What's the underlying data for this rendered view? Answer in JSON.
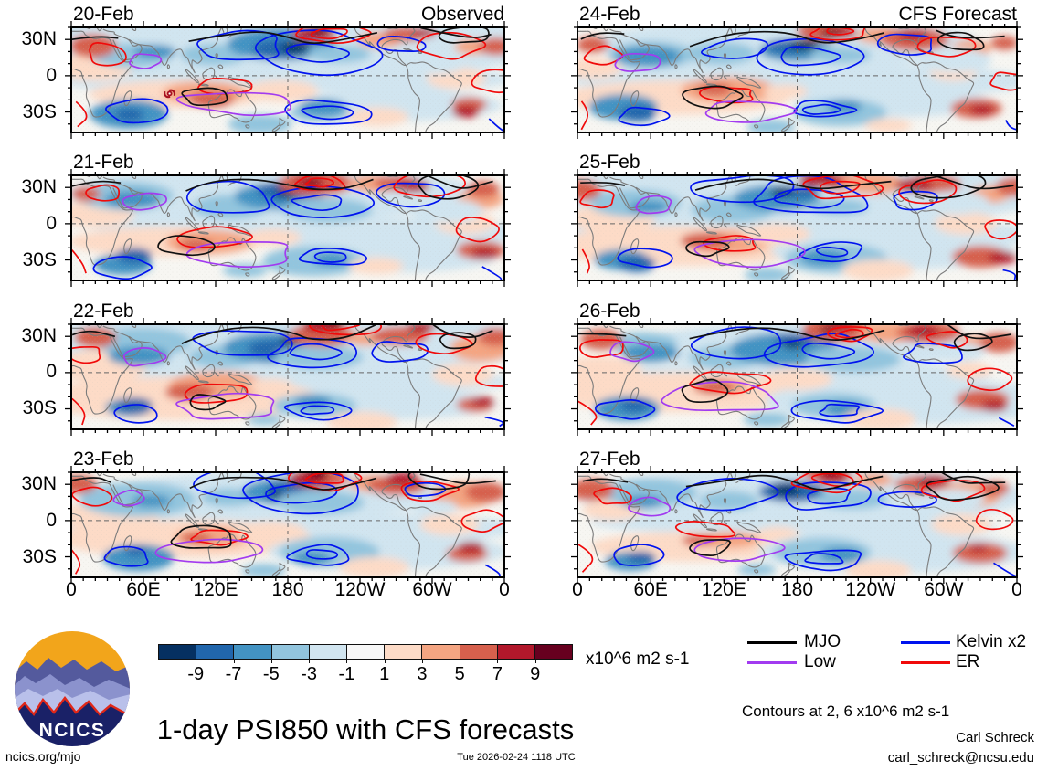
{
  "figure": {
    "title": "1-day PSI850 with CFS forecasts",
    "contours_note": "Contours at 2, 6 x10^6 m2 s-1",
    "credit_name": "Carl Schreck",
    "credit_email": "carl_schreck@ncsu.edu",
    "footer_left": "ncics.org/mjo",
    "footer_center": "Tue 2026-02-24 1118 UTC",
    "logo_text": "NCICS"
  },
  "columns": [
    {
      "header": "Observed"
    },
    {
      "header": "CFS Forecast"
    }
  ],
  "panels": [
    {
      "label": "20-Feb",
      "col": 0,
      "row": 0,
      "header": "Observed"
    },
    {
      "label": "21-Feb",
      "col": 0,
      "row": 1
    },
    {
      "label": "22-Feb",
      "col": 0,
      "row": 2
    },
    {
      "label": "23-Feb",
      "col": 0,
      "row": 3
    },
    {
      "label": "24-Feb",
      "col": 1,
      "row": 0,
      "header": "CFS Forecast"
    },
    {
      "label": "25-Feb",
      "col": 1,
      "row": 1
    },
    {
      "label": "26-Feb",
      "col": 1,
      "row": 2
    },
    {
      "label": "27-Feb",
      "col": 1,
      "row": 3
    }
  ],
  "axes": {
    "y_tick_labels": [
      "30N",
      "0",
      "30S"
    ],
    "x_tick_labels": [
      "0",
      "60E",
      "120E",
      "180",
      "120W",
      "60W",
      "0"
    ]
  },
  "colorbar": {
    "tick_labels": [
      "-9",
      "-7",
      "-5",
      "-3",
      "-1",
      "1",
      "3",
      "5",
      "7",
      "9"
    ],
    "colors": [
      "#053061",
      "#2166ac",
      "#4393c3",
      "#92c5de",
      "#d1e5f0",
      "#f7f7f7",
      "#fddbc7",
      "#f4a582",
      "#d6604d",
      "#b2182b",
      "#67001f"
    ],
    "units_label": "x10^6 m2 s-1"
  },
  "legend": {
    "items": [
      {
        "label": "MJO",
        "color": "#000000"
      },
      {
        "label": "Kelvin x2",
        "color": "#0013ee"
      },
      {
        "label": "Low",
        "color": "#a23bf0"
      },
      {
        "label": "ER",
        "color": "#f00a0a"
      }
    ]
  },
  "chart_data": {
    "type": "heatmap",
    "subtype": "filled-contour world map panels (equirectangular, lon 0-360)",
    "variable": "PSI850 (850 hPa streamfunction) anomaly, 1-day",
    "units": "x10^6 m2 s-1",
    "panel_grid": {
      "rows": 4,
      "cols": 2
    },
    "panels": [
      {
        "date": "20-Feb",
        "source": "Observed"
      },
      {
        "date": "21-Feb",
        "source": "Observed"
      },
      {
        "date": "22-Feb",
        "source": "Observed"
      },
      {
        "date": "23-Feb",
        "source": "Observed"
      },
      {
        "date": "24-Feb",
        "source": "CFS Forecast"
      },
      {
        "date": "25-Feb",
        "source": "CFS Forecast"
      },
      {
        "date": "26-Feb",
        "source": "CFS Forecast"
      },
      {
        "date": "27-Feb",
        "source": "CFS Forecast"
      }
    ],
    "shading_levels": [
      -9,
      -7,
      -5,
      -3,
      -1,
      1,
      3,
      5,
      7,
      9
    ],
    "shading_colors": [
      "#053061",
      "#2166ac",
      "#4393c3",
      "#92c5de",
      "#d1e5f0",
      "#f7f7f7",
      "#fddbc7",
      "#f4a582",
      "#d6604d",
      "#b2182b",
      "#67001f"
    ],
    "contour_levels": [
      2,
      6
    ],
    "overlay_contours": [
      {
        "name": "MJO",
        "color": "black"
      },
      {
        "name": "Low",
        "color": "purple"
      },
      {
        "name": "Kelvin x2",
        "color": "blue"
      },
      {
        "name": "ER",
        "color": "red"
      }
    ],
    "x_axis": {
      "ticks": [
        "0",
        "60E",
        "120E",
        "180",
        "120W",
        "60W",
        "0"
      ],
      "reference_line": "dashed at 180"
    },
    "y_axis": {
      "ticks": [
        "30N",
        "0",
        "30S"
      ],
      "reference_line": "dashed at equator"
    },
    "legend_position": "bottom-right",
    "colorbar_position": "bottom-center"
  }
}
